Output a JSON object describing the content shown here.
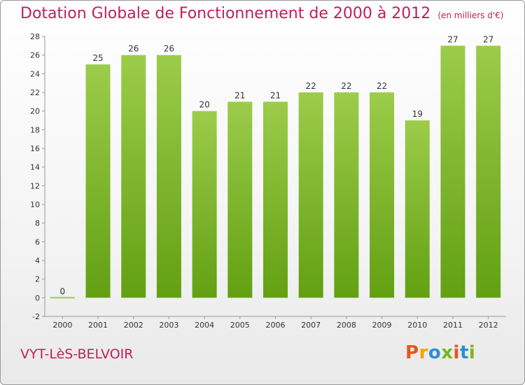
{
  "header": {
    "title": "Dotation Globale de Fonctionnement de 2000 à 2012",
    "subtitle": "(en milliers d'€)"
  },
  "footer": {
    "commune": "VYT-LèS-BELVOIR",
    "logo_text": "Proxiti",
    "logo_colors": [
      "#e8561e",
      "#f0a500",
      "#2e8fd0",
      "#7bb51e",
      "#e8561e",
      "#2e8fd0",
      "#7bb51e"
    ]
  },
  "chart_data": {
    "type": "bar",
    "title": "Dotation Globale de Fonctionnement de 2000 à 2012",
    "subtitle": "(en milliers d'€)",
    "categories": [
      "2000",
      "2001",
      "2002",
      "2003",
      "2004",
      "2005",
      "2006",
      "2007",
      "2008",
      "2009",
      "2010",
      "2011",
      "2012"
    ],
    "values": [
      0,
      25,
      26,
      26,
      20,
      21,
      21,
      22,
      22,
      22,
      19,
      27,
      27
    ],
    "data_labels": [
      "0",
      "25",
      "26",
      "26",
      "20",
      "21",
      "21",
      "22",
      "22",
      "22",
      "19",
      "27",
      "27"
    ],
    "ylim": [
      -2,
      28
    ],
    "yticks": [
      -2,
      0,
      2,
      4,
      6,
      8,
      10,
      12,
      14,
      16,
      18,
      20,
      22,
      24,
      26,
      28
    ],
    "xlabel": "",
    "ylabel": "",
    "grid": false,
    "bar_color": "#7ab51d",
    "bar_color_light": "#9ccc4a"
  }
}
